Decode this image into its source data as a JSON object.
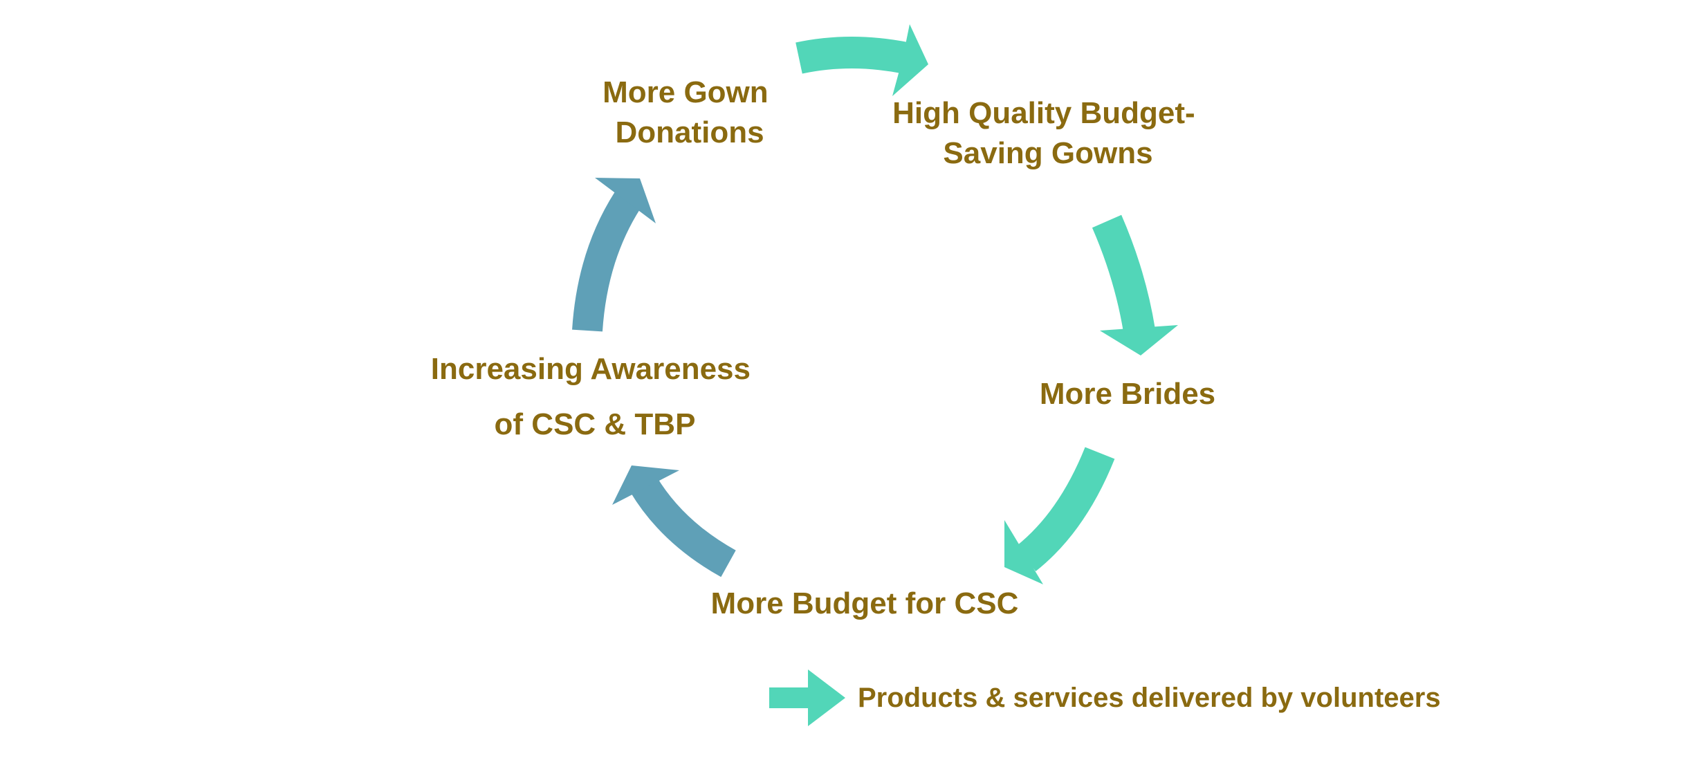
{
  "colors": {
    "label": "#8a6a10",
    "volunteer_arrow": "#52d6b8",
    "awareness_arrow": "#5fa0b7",
    "background": "#ffffff"
  },
  "nodes": {
    "gown_donations": {
      "line1": "More Gown",
      "line2": "Donations"
    },
    "budget_saving_gowns": {
      "line1": "High Quality Budget-",
      "line2": "Saving Gowns"
    },
    "brides": {
      "line1": "More Brides"
    },
    "budget": {
      "line1": "More Budget for CSC"
    },
    "awareness": {
      "line1": "Increasing Awareness",
      "line2": "of CSC & TBP"
    }
  },
  "legend": {
    "label": "Products & services delivered by volunteers",
    "icon": "right-arrow-icon"
  }
}
